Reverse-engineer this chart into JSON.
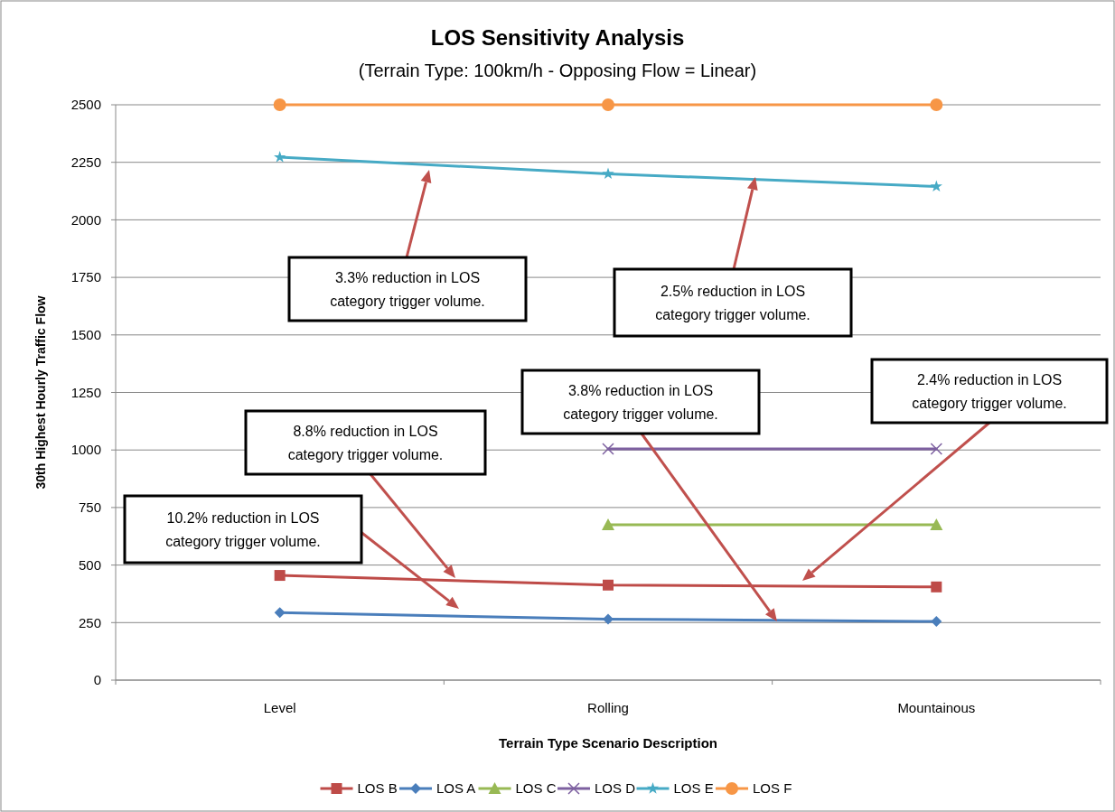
{
  "chart_data": {
    "type": "line",
    "title": "LOS Sensitivity Analysis",
    "subtitle": "(Terrain Type: 100km/h - Opposing Flow = Linear)",
    "xlabel": "Terrain Type Scenario Description",
    "ylabel": "30th Highest Hourly Traffic Flow",
    "categories": [
      "Level",
      "Rolling",
      "Mountainous"
    ],
    "series": [
      {
        "name": "LOS B",
        "color": "#be4b48",
        "marker": "square",
        "values": [
          455,
          413,
          405
        ]
      },
      {
        "name": "LOS A",
        "color": "#4a7ebb",
        "marker": "diamond",
        "values": [
          293,
          265,
          255
        ]
      },
      {
        "name": "LOS C",
        "color": "#98b954",
        "marker": "triangle",
        "values": [
          null,
          675,
          675
        ]
      },
      {
        "name": "LOS D",
        "color": "#7d60a0",
        "marker": "cross",
        "values": [
          null,
          1005,
          1005
        ]
      },
      {
        "name": "LOS E",
        "color": "#46aac5",
        "marker": "star",
        "values": [
          2272,
          2200,
          2145
        ]
      },
      {
        "name": "LOS F",
        "color": "#f79646",
        "marker": "circle",
        "values": [
          2500,
          2500,
          2500
        ]
      }
    ],
    "ylim": [
      0,
      2500
    ],
    "yticks": [
      0,
      250,
      500,
      750,
      1000,
      1250,
      1500,
      1750,
      2000,
      2250,
      2500
    ],
    "grid": "y",
    "legend": "bottom",
    "annotations": [
      "3.3% reduction in LOS category trigger volume.",
      "2.5% reduction in LOS category trigger volume.",
      "10.2% reduction in LOS category trigger volume.",
      "8.8% reduction in LOS category trigger volume.",
      "3.8% reduction in LOS category trigger volume.",
      "2.4% reduction in LOS category trigger volume."
    ]
  }
}
